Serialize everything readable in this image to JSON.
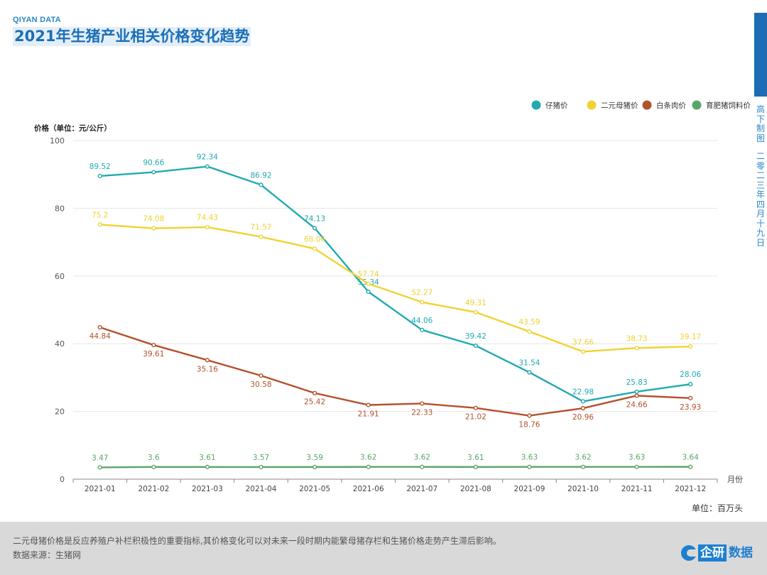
{
  "header": {
    "brand": "QIYAN DATA",
    "title": "2021年生猪产业相关价格变化趋势"
  },
  "sidebar": {
    "line1": "高下制图",
    "line2": "二零二三年四月十九日"
  },
  "chart_data": {
    "type": "line",
    "categories": [
      "2021-01",
      "2021-02",
      "2021-03",
      "2021-04",
      "2021-05",
      "2021-06",
      "2021-07",
      "2021-08",
      "2021-09",
      "2021-10",
      "2021-11",
      "2021-12"
    ],
    "series": [
      {
        "name": "仔猪价",
        "color": "#21aab0",
        "values": [
          89.52,
          90.66,
          92.34,
          86.92,
          74.13,
          55.34,
          44.06,
          39.42,
          31.54,
          22.98,
          25.83,
          28.06
        ]
      },
      {
        "name": "二元母猪价",
        "color": "#f0d232",
        "values": [
          75.2,
          74.08,
          74.43,
          71.57,
          68.06,
          57.74,
          52.27,
          49.31,
          43.59,
          37.66,
          38.73,
          39.17
        ]
      },
      {
        "name": "白条肉价",
        "color": "#b4502d",
        "values": [
          44.84,
          39.61,
          35.16,
          30.58,
          25.42,
          21.91,
          22.33,
          21.02,
          18.76,
          20.96,
          24.66,
          23.93
        ]
      },
      {
        "name": "育肥猪饲料价",
        "color": "#5aa569",
        "values": [
          3.47,
          3.6,
          3.61,
          3.57,
          3.59,
          3.62,
          3.62,
          3.61,
          3.63,
          3.62,
          3.63,
          3.64
        ]
      }
    ],
    "ylabel": "价格（单位：元/公斤）",
    "xlabel": "月份",
    "ylim": [
      0,
      100
    ],
    "yticks": [
      0,
      20,
      40,
      60,
      80,
      100
    ],
    "legend_position": "top-right"
  },
  "unit_note": "单位：百万头",
  "footer": {
    "note": "二元母猪价格是反应养殖户补栏积极性的重要指标,其价格变化可以对未来一段时期内能繁母猪存栏和生猪价格走势产生滞后影响。",
    "source": "数据来源：生猪网",
    "logo_box": "企研",
    "logo_text": "数据"
  }
}
